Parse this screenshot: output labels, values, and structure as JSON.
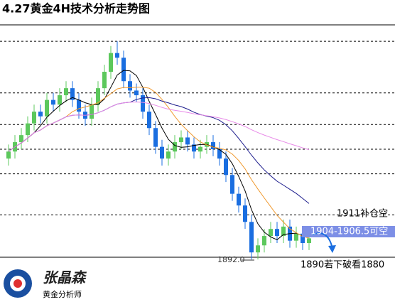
{
  "chart_data": {
    "type": "candlestick",
    "title": "4.27黄金4H技术分析走势图",
    "open": [
      1935,
      1938,
      1942,
      1945,
      1950,
      1955,
      1953,
      1960,
      1958,
      1962,
      1965,
      1960,
      1955,
      1952,
      1958,
      1965,
      1972,
      1980,
      1978,
      1968,
      1964,
      1962,
      1955,
      1948,
      1940,
      1935,
      1938,
      1942,
      1944,
      1941,
      1938,
      1940,
      1942,
      1939,
      1935,
      1928,
      1920,
      1915,
      1908,
      1895,
      1898,
      1902,
      1905,
      1902,
      1906,
      1900,
      1903,
      1899
    ],
    "high": [
      1941,
      1945,
      1948,
      1953,
      1958,
      1958,
      1963,
      1963,
      1965,
      1968,
      1968,
      1963,
      1958,
      1961,
      1968,
      1975,
      1983,
      1985,
      1981,
      1971,
      1967,
      1965,
      1958,
      1951,
      1943,
      1941,
      1945,
      1947,
      1947,
      1944,
      1943,
      1945,
      1945,
      1942,
      1938,
      1931,
      1923,
      1918,
      1911,
      1901,
      1905,
      1908,
      1908,
      1909,
      1909,
      1906,
      1906,
      1904
    ],
    "low": [
      1932,
      1935,
      1939,
      1942,
      1947,
      1950,
      1950,
      1955,
      1955,
      1959,
      1957,
      1952,
      1949,
      1949,
      1955,
      1962,
      1969,
      1975,
      1965,
      1961,
      1959,
      1952,
      1945,
      1937,
      1932,
      1932,
      1935,
      1939,
      1938,
      1935,
      1935,
      1937,
      1936,
      1932,
      1925,
      1917,
      1912,
      1905,
      1892,
      1892,
      1895,
      1899,
      1899,
      1899,
      1897,
      1897,
      1896,
      1896
    ],
    "close": [
      1938,
      1942,
      1945,
      1950,
      1955,
      1953,
      1960,
      1958,
      1962,
      1965,
      1960,
      1955,
      1952,
      1958,
      1965,
      1972,
      1980,
      1978,
      1968,
      1964,
      1962,
      1955,
      1948,
      1940,
      1935,
      1938,
      1942,
      1944,
      1941,
      1938,
      1940,
      1942,
      1939,
      1935,
      1928,
      1920,
      1915,
      1908,
      1895,
      1898,
      1902,
      1905,
      1902,
      1906,
      1900,
      1903,
      1899,
      1901
    ],
    "up_color": "#5cc85c",
    "down_color": "#1a6ee0",
    "moving_averages": [
      {
        "period": 5,
        "color": "#000000"
      },
      {
        "period": 10,
        "color": "#f09a30"
      },
      {
        "period": 20,
        "color": "#1c1c8c"
      },
      {
        "period": 60,
        "color": "#e88ae8"
      }
    ],
    "ylim": [
      1889,
      1992
    ],
    "reference_lines": [
      1985,
      1963,
      1949.5,
      1939,
      1928.5,
      1911
    ],
    "level_label": "1911补仓空",
    "zone_label": "1904-1906.5可空",
    "low_label": "1892.0",
    "target_label": "1890若下破看1880"
  },
  "brand": {
    "name": "张晶森",
    "tagline": "黄金分析师"
  }
}
